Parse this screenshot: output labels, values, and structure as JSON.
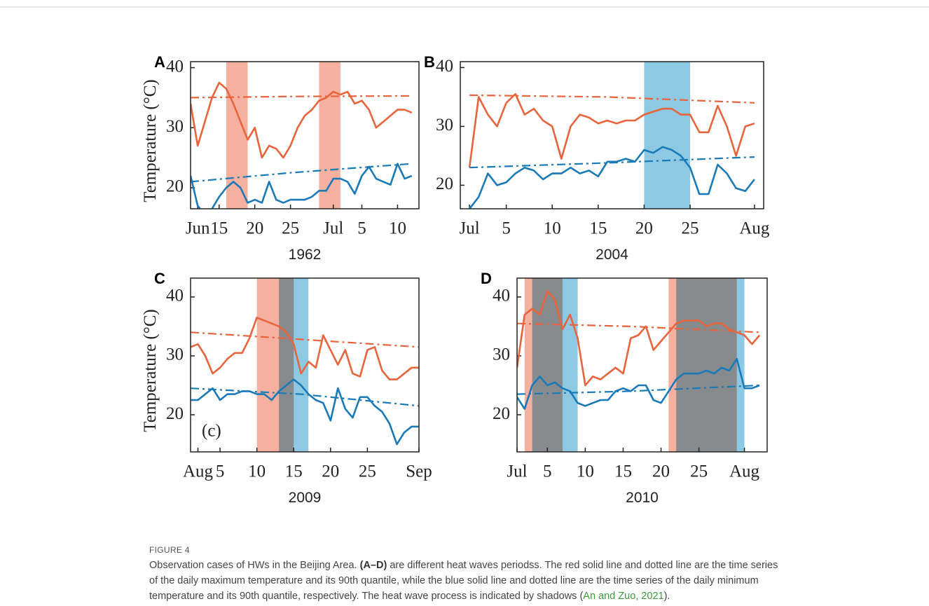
{
  "chart_data": [
    {
      "type": "line",
      "panel_label": "A",
      "ylabel": "Temperature (°C)",
      "xlabel": "1962",
      "xlim": [
        "1962-06-11",
        "1962-07-13"
      ],
      "ylim": [
        16.5,
        41
      ],
      "yticks": [
        20,
        30,
        40
      ],
      "xticks": [
        {
          "value": "1962-06-12",
          "label": "Jun"
        },
        {
          "value": "1962-06-15",
          "label": "15"
        },
        {
          "value": "1962-06-20",
          "label": "20"
        },
        {
          "value": "1962-06-25",
          "label": "25"
        },
        {
          "value": "1962-07-01",
          "label": "Jul"
        },
        {
          "value": "1962-07-05",
          "label": "5"
        },
        {
          "value": "1962-07-10",
          "label": "10"
        }
      ],
      "shades": [
        {
          "start": "1962-06-16",
          "end": "1962-06-19",
          "color": "#f5b0a0"
        },
        {
          "start": "1962-06-29",
          "end": "1962-07-02",
          "color": "#f5b0a0"
        }
      ],
      "x": [
        "1962-06-11",
        "1962-06-12",
        "1962-06-13",
        "1962-06-14",
        "1962-06-15",
        "1962-06-16",
        "1962-06-17",
        "1962-06-18",
        "1962-06-19",
        "1962-06-20",
        "1962-06-21",
        "1962-06-22",
        "1962-06-23",
        "1962-06-24",
        "1962-06-25",
        "1962-06-26",
        "1962-06-27",
        "1962-06-28",
        "1962-06-29",
        "1962-06-30",
        "1962-07-01",
        "1962-07-02",
        "1962-07-03",
        "1962-07-04",
        "1962-07-05",
        "1962-07-06",
        "1962-07-07",
        "1962-07-08",
        "1962-07-09",
        "1962-07-10",
        "1962-07-11",
        "1962-07-12"
      ],
      "series": [
        {
          "color": "#e8643c",
          "style": "solid",
          "values": [
            34,
            27,
            31,
            35,
            37.5,
            36.5,
            34,
            31,
            28,
            30,
            25,
            27,
            26.5,
            25,
            27,
            30,
            32,
            33,
            34.5,
            35,
            36,
            35.5,
            36,
            34,
            34.5,
            33,
            30,
            31,
            32,
            33,
            33,
            32.5
          ]
        },
        {
          "color": "#1a7ab8",
          "style": "solid",
          "values": [
            22,
            17,
            15.5,
            16.5,
            18.5,
            20,
            21,
            20,
            17.5,
            18,
            17.5,
            21,
            18,
            17.5,
            18,
            18,
            18,
            18.5,
            19.5,
            19.5,
            21.5,
            21.5,
            21,
            19,
            22,
            23.5,
            21.5,
            21,
            20.5,
            24,
            21.5,
            22
          ]
        },
        {
          "color": "#e8643c",
          "style": "dash-dot",
          "x": [
            "1962-06-11",
            "1962-06-25",
            "1962-07-12"
          ],
          "values": [
            35,
            35.2,
            35.3
          ]
        },
        {
          "color": "#1a7ab8",
          "style": "dash-dot",
          "x": [
            "1962-06-11",
            "1962-06-25",
            "1962-07-12"
          ],
          "values": [
            21,
            22.5,
            24
          ]
        }
      ]
    },
    {
      "type": "line",
      "panel_label": "B",
      "xlabel": "2004",
      "xlim": [
        "2004-06-30",
        "2004-08-02"
      ],
      "ylim": [
        16,
        41
      ],
      "yticks": [
        20,
        30,
        40
      ],
      "xticks": [
        {
          "value": "2004-07-01",
          "label": "Jul"
        },
        {
          "value": "2004-07-05",
          "label": "5"
        },
        {
          "value": "2004-07-10",
          "label": "10"
        },
        {
          "value": "2004-07-15",
          "label": "15"
        },
        {
          "value": "2004-07-20",
          "label": "20"
        },
        {
          "value": "2004-07-25",
          "label": "25"
        },
        {
          "value": "2004-08-01",
          "label": "Aug"
        }
      ],
      "shades": [
        {
          "start": "2004-07-20",
          "end": "2004-07-25",
          "color": "#8ec9e3"
        }
      ],
      "x": [
        "2004-07-01",
        "2004-07-02",
        "2004-07-03",
        "2004-07-04",
        "2004-07-05",
        "2004-07-06",
        "2004-07-07",
        "2004-07-08",
        "2004-07-09",
        "2004-07-10",
        "2004-07-11",
        "2004-07-12",
        "2004-07-13",
        "2004-07-14",
        "2004-07-15",
        "2004-07-16",
        "2004-07-17",
        "2004-07-18",
        "2004-07-19",
        "2004-07-20",
        "2004-07-21",
        "2004-07-22",
        "2004-07-23",
        "2004-07-24",
        "2004-07-25",
        "2004-07-26",
        "2004-07-27",
        "2004-07-28",
        "2004-07-29",
        "2004-07-30",
        "2004-07-31",
        "2004-08-01"
      ],
      "series": [
        {
          "color": "#e8643c",
          "style": "solid",
          "values": [
            23,
            35,
            32,
            30,
            34,
            35.5,
            32,
            33,
            31,
            30,
            24.5,
            30,
            32,
            31.5,
            30.5,
            31,
            30.5,
            31,
            31,
            32,
            32.5,
            33,
            33,
            32,
            32,
            29,
            29,
            33.5,
            30,
            25,
            30,
            30.5
          ]
        },
        {
          "color": "#1a7ab8",
          "style": "solid",
          "values": [
            16,
            18,
            22,
            20,
            20.5,
            22,
            23,
            22.5,
            21,
            22,
            22,
            23,
            22,
            22.5,
            21.5,
            24,
            24,
            24.5,
            24,
            26,
            25.5,
            26.5,
            26,
            25,
            23,
            18.5,
            18.5,
            23.5,
            22,
            19.5,
            19,
            21
          ]
        },
        {
          "color": "#e8643c",
          "style": "dash-dot",
          "x": [
            "2004-07-01",
            "2004-07-16",
            "2004-08-01"
          ],
          "values": [
            35.3,
            35,
            34
          ]
        },
        {
          "color": "#1a7ab8",
          "style": "dash-dot",
          "x": [
            "2004-07-01",
            "2004-07-16",
            "2004-08-01"
          ],
          "values": [
            23,
            23.8,
            24.8
          ]
        }
      ]
    },
    {
      "type": "line",
      "panel_label": "C",
      "ylabel": "Temperature (°C)",
      "xlabel": "2009",
      "annotation": "(c)",
      "xlim": [
        "2009-08-01",
        "2009-09-01"
      ],
      "ylim": [
        13.7,
        43.2
      ],
      "yticks": [
        20,
        30,
        40
      ],
      "xticks": [
        {
          "value": "2009-08-02",
          "label": "Aug"
        },
        {
          "value": "2009-08-05",
          "label": "5"
        },
        {
          "value": "2009-08-10",
          "label": "10"
        },
        {
          "value": "2009-08-15",
          "label": "15"
        },
        {
          "value": "2009-08-20",
          "label": "20"
        },
        {
          "value": "2009-08-25",
          "label": "25"
        },
        {
          "value": "2009-09-01",
          "label": "Sep"
        }
      ],
      "shades": [
        {
          "start": "2009-08-10",
          "end": "2009-08-15",
          "color": "#f5b0a0"
        },
        {
          "start": "2009-08-13",
          "end": "2009-08-17",
          "color": "#8ec9e3"
        }
      ],
      "x": [
        "2009-08-01",
        "2009-08-02",
        "2009-08-03",
        "2009-08-04",
        "2009-08-05",
        "2009-08-06",
        "2009-08-07",
        "2009-08-08",
        "2009-08-09",
        "2009-08-10",
        "2009-08-11",
        "2009-08-12",
        "2009-08-13",
        "2009-08-14",
        "2009-08-15",
        "2009-08-16",
        "2009-08-17",
        "2009-08-18",
        "2009-08-19",
        "2009-08-20",
        "2009-08-21",
        "2009-08-22",
        "2009-08-23",
        "2009-08-24",
        "2009-08-25",
        "2009-08-26",
        "2009-08-27",
        "2009-08-28",
        "2009-08-29",
        "2009-08-30",
        "2009-08-31",
        "2009-09-01"
      ],
      "series": [
        {
          "color": "#e8643c",
          "style": "solid",
          "values": [
            31.5,
            32,
            30,
            27,
            28,
            29.5,
            30.5,
            30.5,
            33,
            36.5,
            36,
            35.5,
            35,
            34,
            32,
            27,
            29,
            28,
            33.5,
            31,
            28.5,
            31,
            27,
            26.5,
            31,
            31.5,
            27.5,
            26,
            26,
            27,
            28,
            28
          ]
        },
        {
          "color": "#1a7ab8",
          "style": "solid",
          "values": [
            22.5,
            22.5,
            23.5,
            24.5,
            22.5,
            23.5,
            23.5,
            24,
            24,
            23.5,
            23.5,
            22.5,
            24,
            25,
            26,
            25,
            23.5,
            22.5,
            22,
            19,
            24.5,
            21,
            19.5,
            23,
            23,
            21.5,
            20.5,
            18.5,
            15,
            17,
            18,
            18
          ]
        },
        {
          "color": "#e8643c",
          "style": "dash-dot",
          "x": [
            "2009-08-01",
            "2009-08-16",
            "2009-09-01"
          ],
          "values": [
            34,
            32.8,
            31.5
          ]
        },
        {
          "color": "#1a7ab8",
          "style": "dash-dot",
          "x": [
            "2009-08-01",
            "2009-08-16",
            "2009-09-01"
          ],
          "values": [
            24.5,
            23.5,
            21.5
          ]
        }
      ]
    },
    {
      "type": "line",
      "panel_label": "D",
      "xlabel": "2010",
      "xlim": [
        "2010-07-01",
        "2010-08-03"
      ],
      "ylim": [
        13.7,
        43.2
      ],
      "yticks": [
        20,
        30,
        40
      ],
      "xticks": [
        {
          "value": "2010-07-01",
          "label": "Jul"
        },
        {
          "value": "2010-07-05",
          "label": "5"
        },
        {
          "value": "2010-07-10",
          "label": "10"
        },
        {
          "value": "2010-07-15",
          "label": "15"
        },
        {
          "value": "2010-07-20",
          "label": "20"
        },
        {
          "value": "2010-07-25",
          "label": "25"
        },
        {
          "value": "2010-07-31",
          "label": "Aug"
        }
      ],
      "shades": [
        {
          "start": "2010-07-02",
          "end": "2010-07-07",
          "color": "#f5b0a0"
        },
        {
          "start": "2010-07-03",
          "end": "2010-07-09",
          "color": "#8ec9e3"
        },
        {
          "start": "2010-07-21",
          "end": "2010-07-30",
          "color": "#f5b0a0"
        },
        {
          "start": "2010-07-22",
          "end": "2010-07-31",
          "color": "#8ec9e3"
        }
      ],
      "x": [
        "2010-07-01",
        "2010-07-02",
        "2010-07-03",
        "2010-07-04",
        "2010-07-05",
        "2010-07-06",
        "2010-07-07",
        "2010-07-08",
        "2010-07-09",
        "2010-07-10",
        "2010-07-11",
        "2010-07-12",
        "2010-07-13",
        "2010-07-14",
        "2010-07-15",
        "2010-07-16",
        "2010-07-17",
        "2010-07-18",
        "2010-07-19",
        "2010-07-20",
        "2010-07-21",
        "2010-07-22",
        "2010-07-23",
        "2010-07-24",
        "2010-07-25",
        "2010-07-26",
        "2010-07-27",
        "2010-07-28",
        "2010-07-29",
        "2010-07-30",
        "2010-07-31",
        "2010-08-01",
        "2010-08-02"
      ],
      "series": [
        {
          "color": "#e8643c",
          "style": "solid",
          "values": [
            28,
            37,
            38,
            37,
            41,
            39.5,
            34.5,
            37,
            33,
            25,
            26.5,
            26,
            27,
            28,
            27,
            33,
            33.5,
            35,
            31,
            32.5,
            34,
            35.5,
            36,
            36,
            36,
            35,
            35.5,
            35.5,
            34.5,
            34,
            33.5,
            32,
            33.5
          ]
        },
        {
          "color": "#1a7ab8",
          "style": "solid",
          "values": [
            23,
            21,
            25,
            26.5,
            25,
            25.5,
            24.5,
            24,
            22,
            21.5,
            22,
            22.5,
            22.5,
            24,
            24.5,
            24,
            25,
            25,
            22.5,
            22,
            24,
            26,
            27,
            27,
            27,
            27.5,
            27,
            28,
            27.5,
            29.5,
            24.5,
            24.5,
            25
          ]
        },
        {
          "color": "#e8643c",
          "style": "dash-dot",
          "x": [
            "2010-07-01",
            "2010-07-16",
            "2010-08-02"
          ],
          "values": [
            35.5,
            35,
            34
          ]
        },
        {
          "color": "#1a7ab8",
          "style": "dash-dot",
          "x": [
            "2010-07-01",
            "2010-07-16",
            "2010-08-02"
          ],
          "values": [
            23.5,
            24,
            25
          ]
        }
      ]
    }
  ],
  "caption": {
    "label": "FIGURE 4",
    "parts": [
      "Observation cases of HWs in the Beijing Area. ",
      "(A–D)",
      " are different heat waves periodss. The red solid line and dotted line are the time series of the daily maximum temperature and its 90th quantile, while the blue solid line and dotted line are the time series of the daily minimum temperature and its 90th quantile, respectively. The heat wave process is indicated by shadows (",
      "An and Zuo, 2021",
      ")."
    ]
  }
}
